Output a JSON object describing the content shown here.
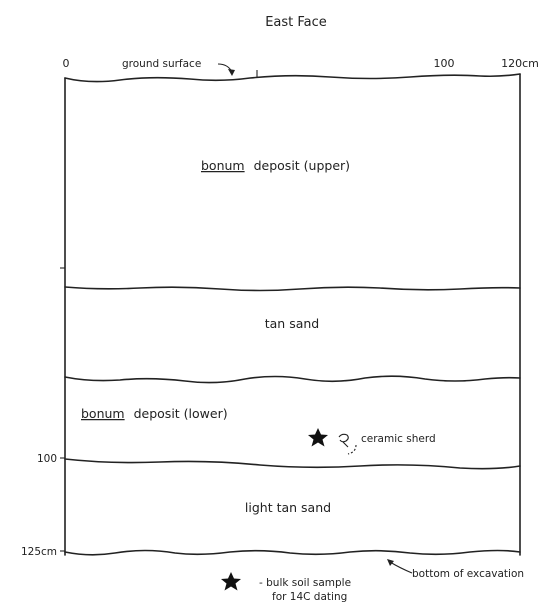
{
  "title": "East Face",
  "scale": {
    "left": "0",
    "mid": "100",
    "right": "120cm",
    "depth_100": "100",
    "depth_125": "125cm"
  },
  "annotations": {
    "ground_surface": "ground surface",
    "bottom": "bottom of excavation",
    "ceramic": "ceramic sherd"
  },
  "layers": {
    "upper_word": "bonum",
    "upper_rest": "deposit (upper)",
    "tan_sand": "tan sand",
    "lower_word": "bonum",
    "lower_rest": "deposit (lower)",
    "light_tan_sand": "light tan sand"
  },
  "legend": {
    "line1": "- bulk soil sample",
    "line2": "for 14C dating"
  }
}
